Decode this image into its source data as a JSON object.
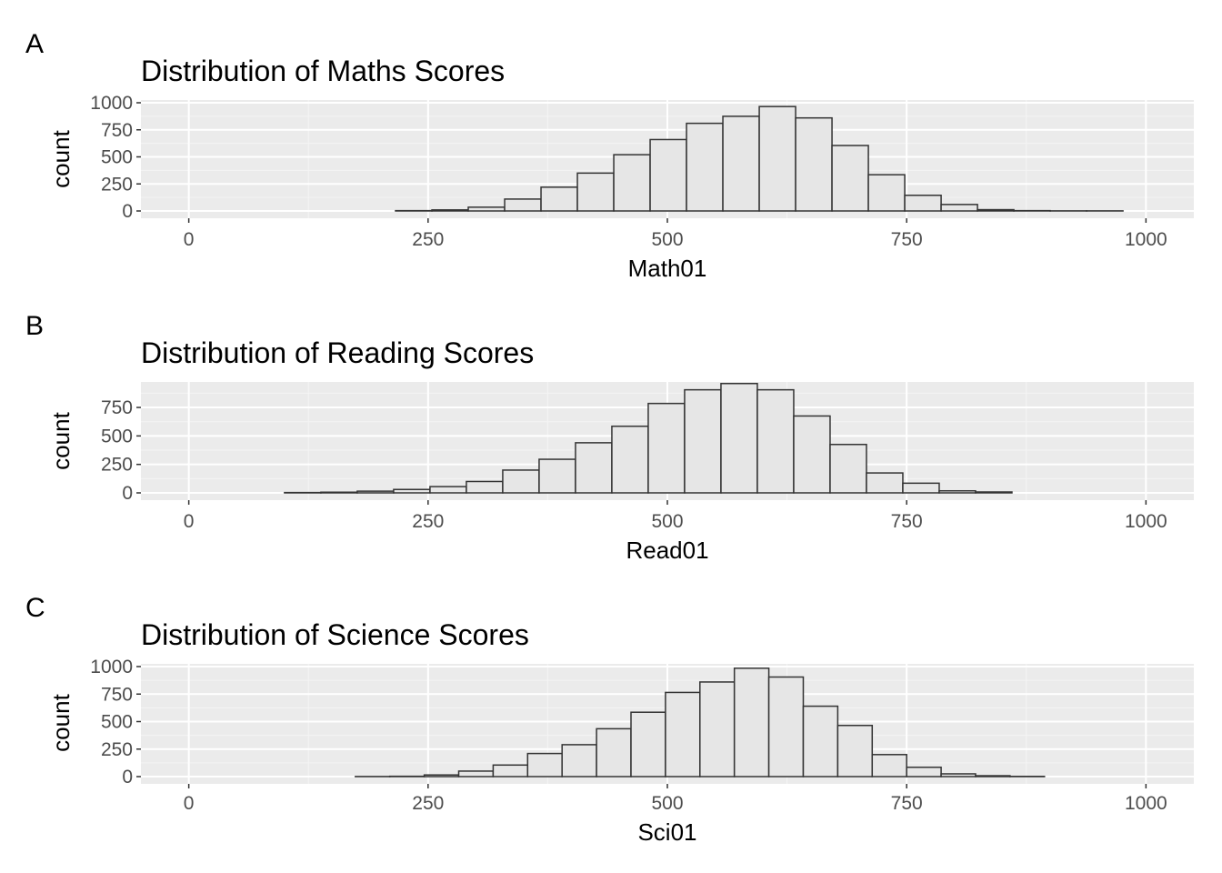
{
  "chart_data": [
    {
      "type": "bar",
      "panel_tag": "A",
      "title": "Distribution of Maths Scores",
      "xlabel": "Math01",
      "ylabel": "count",
      "xlim": [
        -50,
        1050
      ],
      "ylim": [
        0,
        1000
      ],
      "x_ticks": [
        0,
        250,
        500,
        750,
        1000
      ],
      "y_ticks": [
        0,
        250,
        500,
        750,
        1000
      ],
      "bins": [
        {
          "x0": 216,
          "x1": 254,
          "count": 3
        },
        {
          "x0": 254,
          "x1": 292,
          "count": 10
        },
        {
          "x0": 292,
          "x1": 330,
          "count": 35
        },
        {
          "x0": 330,
          "x1": 368,
          "count": 110
        },
        {
          "x0": 368,
          "x1": 406,
          "count": 220
        },
        {
          "x0": 406,
          "x1": 444,
          "count": 350
        },
        {
          "x0": 444,
          "x1": 482,
          "count": 520
        },
        {
          "x0": 482,
          "x1": 520,
          "count": 660
        },
        {
          "x0": 520,
          "x1": 558,
          "count": 810
        },
        {
          "x0": 558,
          "x1": 596,
          "count": 875
        },
        {
          "x0": 596,
          "x1": 634,
          "count": 965
        },
        {
          "x0": 634,
          "x1": 672,
          "count": 860
        },
        {
          "x0": 672,
          "x1": 710,
          "count": 605
        },
        {
          "x0": 710,
          "x1": 748,
          "count": 335
        },
        {
          "x0": 748,
          "x1": 786,
          "count": 145
        },
        {
          "x0": 786,
          "x1": 824,
          "count": 60
        },
        {
          "x0": 824,
          "x1": 862,
          "count": 12
        },
        {
          "x0": 862,
          "x1": 900,
          "count": 3
        },
        {
          "x0": 900,
          "x1": 938,
          "count": 1
        },
        {
          "x0": 938,
          "x1": 976,
          "count": 1
        }
      ]
    },
    {
      "type": "bar",
      "panel_tag": "B",
      "title": "Distribution of Reading Scores",
      "xlabel": "Read01",
      "ylabel": "count",
      "xlim": [
        -50,
        1050
      ],
      "ylim": [
        0,
        950
      ],
      "x_ticks": [
        0,
        250,
        500,
        750,
        1000
      ],
      "y_ticks": [
        0,
        250,
        500,
        750
      ],
      "bins": [
        {
          "x0": 100,
          "x1": 138,
          "count": 3
        },
        {
          "x0": 138,
          "x1": 176,
          "count": 6
        },
        {
          "x0": 176,
          "x1": 214,
          "count": 15
        },
        {
          "x0": 214,
          "x1": 252,
          "count": 30
        },
        {
          "x0": 252,
          "x1": 290,
          "count": 55
        },
        {
          "x0": 290,
          "x1": 328,
          "count": 100
        },
        {
          "x0": 328,
          "x1": 366,
          "count": 200
        },
        {
          "x0": 366,
          "x1": 404,
          "count": 295
        },
        {
          "x0": 404,
          "x1": 442,
          "count": 440
        },
        {
          "x0": 442,
          "x1": 480,
          "count": 585
        },
        {
          "x0": 480,
          "x1": 518,
          "count": 785
        },
        {
          "x0": 518,
          "x1": 556,
          "count": 905
        },
        {
          "x0": 556,
          "x1": 594,
          "count": 960
        },
        {
          "x0": 594,
          "x1": 632,
          "count": 905
        },
        {
          "x0": 632,
          "x1": 670,
          "count": 675
        },
        {
          "x0": 670,
          "x1": 708,
          "count": 425
        },
        {
          "x0": 708,
          "x1": 746,
          "count": 175
        },
        {
          "x0": 746,
          "x1": 784,
          "count": 85
        },
        {
          "x0": 784,
          "x1": 822,
          "count": 18
        },
        {
          "x0": 822,
          "x1": 860,
          "count": 8
        }
      ]
    },
    {
      "type": "bar",
      "panel_tag": "C",
      "title": "Distribution of Science Scores",
      "xlabel": "Sci01",
      "ylabel": "count",
      "xlim": [
        -50,
        1050
      ],
      "ylim": [
        0,
        1000
      ],
      "x_ticks": [
        0,
        250,
        500,
        750,
        1000
      ],
      "y_ticks": [
        0,
        250,
        500,
        750,
        1000
      ],
      "bins": [
        {
          "x0": 174,
          "x1": 210,
          "count": 1
        },
        {
          "x0": 210,
          "x1": 246,
          "count": 3
        },
        {
          "x0": 246,
          "x1": 282,
          "count": 15
        },
        {
          "x0": 282,
          "x1": 318,
          "count": 50
        },
        {
          "x0": 318,
          "x1": 354,
          "count": 105
        },
        {
          "x0": 354,
          "x1": 390,
          "count": 210
        },
        {
          "x0": 390,
          "x1": 426,
          "count": 290
        },
        {
          "x0": 426,
          "x1": 462,
          "count": 435
        },
        {
          "x0": 462,
          "x1": 498,
          "count": 585
        },
        {
          "x0": 498,
          "x1": 534,
          "count": 765
        },
        {
          "x0": 534,
          "x1": 570,
          "count": 860
        },
        {
          "x0": 570,
          "x1": 606,
          "count": 985
        },
        {
          "x0": 606,
          "x1": 642,
          "count": 905
        },
        {
          "x0": 642,
          "x1": 678,
          "count": 640
        },
        {
          "x0": 678,
          "x1": 714,
          "count": 465
        },
        {
          "x0": 714,
          "x1": 750,
          "count": 200
        },
        {
          "x0": 750,
          "x1": 786,
          "count": 85
        },
        {
          "x0": 786,
          "x1": 822,
          "count": 25
        },
        {
          "x0": 822,
          "x1": 858,
          "count": 8
        },
        {
          "x0": 858,
          "x1": 894,
          "count": 2
        }
      ]
    }
  ],
  "colors": {
    "panel_background": "#ebebeb",
    "grid_major": "#ffffff",
    "grid_minor": "#f4f4f4",
    "bar_fill": "#e6e6e6",
    "bar_stroke": "#333333",
    "tick_mark": "#333333",
    "tick_text": "#4d4d4d"
  }
}
